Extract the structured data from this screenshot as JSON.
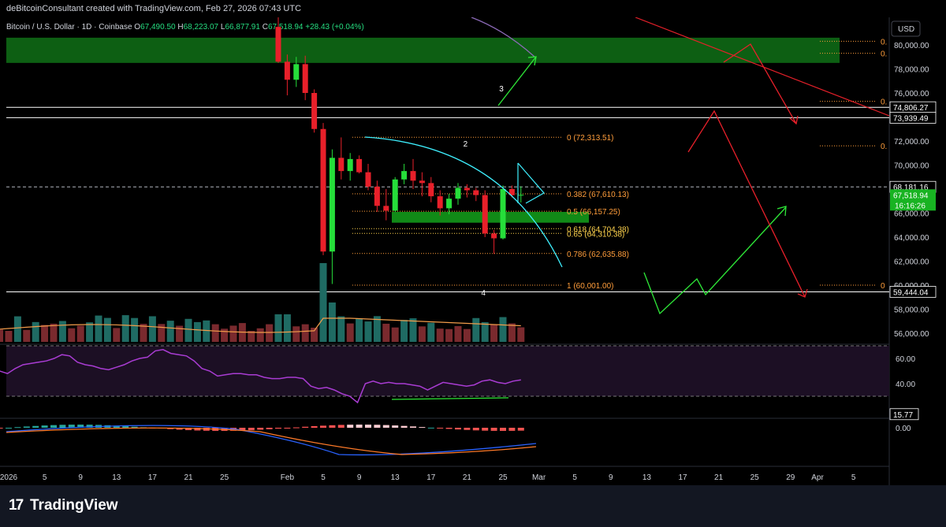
{
  "header": {
    "publisher_line": "deBitcoinConsultant created with TradingView.com, Feb 27, 2026 07:43 UTC",
    "symbol": "Bitcoin / U.S. Dollar · 1D · Coinbase",
    "o_label": "O",
    "o_value": "67,490.50",
    "h_label": "H",
    "h_value": "68,223.07",
    "l_label": "L",
    "l_value": "66,877.91",
    "c_label": "C",
    "c_value": "67,518.94",
    "change": "+28.43 (+0.04%)"
  },
  "currency": "USD",
  "colors": {
    "up": "#26de3a",
    "down": "#e8202a",
    "vol_up": "#1f6b63",
    "vol_down": "#7a2a2e",
    "vol_ma": "#f29c4a",
    "rsi": "#a93cd3",
    "rsi_band": "#1c0f24",
    "macd": "#2962ff",
    "signal": "#ff7a28",
    "fib": "#ff9d3b",
    "fib_yellow": "#ffd34d",
    "zone_green": "#0d5f13",
    "cyan": "#3ef0ff",
    "white": "#ffffff"
  },
  "chart_data": {
    "type": "candlestick",
    "timeframe": "1D",
    "price_axis": [
      "80,000.00",
      "78,000.00",
      "76,000.00",
      "72,000.00",
      "70,000.00",
      "66,000.00",
      "64,000.00",
      "62,000.00",
      "60,000.00",
      "58,000.00",
      "56,000.00"
    ],
    "price_axis_values": [
      80000,
      78000,
      76000,
      72000,
      70000,
      66000,
      64000,
      62000,
      60000,
      58000,
      56000
    ],
    "price_tags": [
      {
        "label": "74,806.27",
        "value": 74806.27
      },
      {
        "label": "73,939.49",
        "value": 73939.49
      },
      {
        "label": "68,181.16",
        "value": 68181.16
      },
      {
        "label": "59,444.04",
        "value": 59444.04
      }
    ],
    "current_price_tag": {
      "label": "67,518.94",
      "value": 67518.94,
      "countdown": "16:16:26"
    },
    "horizontal_lines": [
      74806.27,
      73939.49,
      59444.04
    ],
    "dashed_line": 68181.16,
    "supply_zone": [
      78500,
      80600
    ],
    "demand_zone": [
      65200,
      66100
    ],
    "fib_levels": [
      {
        "label": "0 (72,313.51)",
        "value": 72313.51
      },
      {
        "label": "0.382 (67,610.13)",
        "value": 67610.13
      },
      {
        "label": "0.5 (66,157.25)",
        "value": 66157.25
      },
      {
        "label": "0.618 (64,704.38)",
        "value": 64704.38
      },
      {
        "label": "0.65 (64,310.38)",
        "value": 64310.38
      },
      {
        "label": "0.786 (62,635.88)",
        "value": 62635.88
      },
      {
        "label": "1 (60,001.00)",
        "value": 60001.0
      }
    ],
    "right_fib_labels": [
      {
        "label": "0.",
        "value": 80300
      },
      {
        "label": "0.",
        "value": 79300
      },
      {
        "label": "0.",
        "value": 75300
      },
      {
        "label": "0.",
        "value": 71600
      },
      {
        "label": "0",
        "value": 60000
      }
    ],
    "wave_labels": [
      {
        "label": "2",
        "x": "2026-02-19",
        "value": 71800
      },
      {
        "label": "3",
        "x": "2026-02-23",
        "value": 76400
      },
      {
        "label": "4",
        "x": "2026-02-21",
        "value": 59400
      }
    ],
    "time_axis": [
      {
        "label": "2026",
        "x": "2026-01-01"
      },
      {
        "label": "5",
        "x": "2026-01-05"
      },
      {
        "label": "9",
        "x": "2026-01-09"
      },
      {
        "label": "13",
        "x": "2026-01-13"
      },
      {
        "label": "17",
        "x": "2026-01-17"
      },
      {
        "label": "21",
        "x": "2026-01-21"
      },
      {
        "label": "25",
        "x": "2026-01-25"
      },
      {
        "label": "Feb",
        "x": "2026-02-01"
      },
      {
        "label": "5",
        "x": "2026-02-05"
      },
      {
        "label": "9",
        "x": "2026-02-09"
      },
      {
        "label": "13",
        "x": "2026-02-13"
      },
      {
        "label": "17",
        "x": "2026-02-17"
      },
      {
        "label": "21",
        "x": "2026-02-21"
      },
      {
        "label": "25",
        "x": "2026-02-25"
      },
      {
        "label": "Mar",
        "x": "2026-03-01"
      },
      {
        "label": "5",
        "x": "2026-03-05"
      },
      {
        "label": "9",
        "x": "2026-03-09"
      },
      {
        "label": "13",
        "x": "2026-03-13"
      },
      {
        "label": "17",
        "x": "2026-03-17"
      },
      {
        "label": "21",
        "x": "2026-03-21"
      },
      {
        "label": "25",
        "x": "2026-03-25"
      },
      {
        "label": "29",
        "x": "2026-03-29"
      },
      {
        "label": "Apr",
        "x": "2026-04-01"
      },
      {
        "label": "5",
        "x": "2026-04-05"
      }
    ],
    "candles": [
      {
        "x": "2026-01-31",
        "o": 81500,
        "h": 82500,
        "l": 78500,
        "c": 78600
      },
      {
        "x": "2026-02-01",
        "o": 78600,
        "h": 79200,
        "l": 75800,
        "c": 77100
      },
      {
        "x": "2026-02-02",
        "o": 77100,
        "h": 79000,
        "l": 76500,
        "c": 78400
      },
      {
        "x": "2026-02-03",
        "o": 78400,
        "h": 79100,
        "l": 75400,
        "c": 76000
      },
      {
        "x": "2026-02-04",
        "o": 76000,
        "h": 76300,
        "l": 72700,
        "c": 73000
      },
      {
        "x": "2026-02-05",
        "o": 73000,
        "h": 73500,
        "l": 62500,
        "c": 62800
      },
      {
        "x": "2026-02-06",
        "o": 62800,
        "h": 71300,
        "l": 60100,
        "c": 70600
      },
      {
        "x": "2026-02-07",
        "o": 70600,
        "h": 72300,
        "l": 68800,
        "c": 69500
      },
      {
        "x": "2026-02-08",
        "o": 69500,
        "h": 71000,
        "l": 68700,
        "c": 70500
      },
      {
        "x": "2026-02-09",
        "o": 70500,
        "h": 70800,
        "l": 69300,
        "c": 69400
      },
      {
        "x": "2026-02-10",
        "o": 69400,
        "h": 70100,
        "l": 67900,
        "c": 68200
      },
      {
        "x": "2026-02-11",
        "o": 68200,
        "h": 68700,
        "l": 66100,
        "c": 66600
      },
      {
        "x": "2026-02-12",
        "o": 66600,
        "h": 68000,
        "l": 65400,
        "c": 66200
      },
      {
        "x": "2026-02-13",
        "o": 66200,
        "h": 69000,
        "l": 66100,
        "c": 68800
      },
      {
        "x": "2026-02-14",
        "o": 68800,
        "h": 70100,
        "l": 68400,
        "c": 69500
      },
      {
        "x": "2026-02-15",
        "o": 69500,
        "h": 70500,
        "l": 68000,
        "c": 68700
      },
      {
        "x": "2026-02-16",
        "o": 68700,
        "h": 69400,
        "l": 67400,
        "c": 68500
      },
      {
        "x": "2026-02-17",
        "o": 68500,
        "h": 69000,
        "l": 66900,
        "c": 67400
      },
      {
        "x": "2026-02-18",
        "o": 67400,
        "h": 67900,
        "l": 65800,
        "c": 66400
      },
      {
        "x": "2026-02-19",
        "o": 66400,
        "h": 67600,
        "l": 65900,
        "c": 67200
      },
      {
        "x": "2026-02-20",
        "o": 67200,
        "h": 68500,
        "l": 66700,
        "c": 68100
      },
      {
        "x": "2026-02-21",
        "o": 68100,
        "h": 68400,
        "l": 67300,
        "c": 67900
      },
      {
        "x": "2026-02-22",
        "o": 67900,
        "h": 68100,
        "l": 67000,
        "c": 67500
      },
      {
        "x": "2026-02-23",
        "o": 67500,
        "h": 67900,
        "l": 64000,
        "c": 64300
      },
      {
        "x": "2026-02-24",
        "o": 64300,
        "h": 64600,
        "l": 62600,
        "c": 63900
      },
      {
        "x": "2026-02-25",
        "o": 63900,
        "h": 68300,
        "l": 63800,
        "c": 68000
      },
      {
        "x": "2026-02-26",
        "o": 68000,
        "h": 68300,
        "l": 67300,
        "c": 67490.5
      },
      {
        "x": "2026-02-27",
        "o": 67490.5,
        "h": 68223.07,
        "l": 66877.91,
        "c": 67518.94
      }
    ],
    "rsi_axis": [
      "60.00",
      "40.00"
    ],
    "rsi_axis_values": [
      60,
      40
    ],
    "rsi_tag": {
      "label": "15.77",
      "value": 15.77
    },
    "macd_axis": "0.00"
  }
}
